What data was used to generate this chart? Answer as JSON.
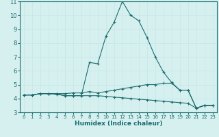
{
  "xlabel": "Humidex (Indice chaleur)",
  "xlim": [
    -0.5,
    23.5
  ],
  "ylim": [
    3,
    11
  ],
  "yticks": [
    3,
    4,
    5,
    6,
    7,
    8,
    9,
    10,
    11
  ],
  "xticks": [
    0,
    1,
    2,
    3,
    4,
    5,
    6,
    7,
    8,
    9,
    10,
    11,
    12,
    13,
    14,
    15,
    16,
    17,
    18,
    19,
    20,
    21,
    22,
    23
  ],
  "bg_color": "#d6f0f0",
  "grid_color": "#c8e8e8",
  "line_color": "#1a6b6b",
  "lines": [
    {
      "x": [
        0,
        1,
        2,
        3,
        4,
        5,
        6,
        7,
        8,
        9,
        10,
        11,
        12,
        13,
        14,
        15,
        16,
        17,
        18,
        19,
        20,
        21,
        22,
        23
      ],
      "y": [
        4.25,
        4.25,
        4.35,
        4.35,
        4.35,
        4.2,
        4.2,
        4.2,
        6.6,
        6.5,
        8.5,
        9.5,
        11.0,
        10.0,
        9.6,
        8.4,
        7.0,
        5.9,
        5.15,
        4.6,
        4.6,
        3.3,
        3.5,
        3.5
      ]
    },
    {
      "x": [
        0,
        1,
        2,
        3,
        4,
        5,
        6,
        7,
        8,
        9,
        10,
        11,
        12,
        13,
        14,
        15,
        16,
        17,
        18,
        19,
        20,
        21,
        22,
        23
      ],
      "y": [
        4.25,
        4.25,
        4.35,
        4.35,
        4.35,
        4.35,
        4.4,
        4.4,
        4.5,
        4.4,
        4.5,
        4.6,
        4.7,
        4.8,
        4.9,
        5.0,
        5.0,
        5.1,
        5.1,
        4.6,
        4.6,
        3.3,
        3.5,
        3.5
      ]
    },
    {
      "x": [
        0,
        1,
        2,
        3,
        4,
        5,
        6,
        7,
        8,
        9,
        10,
        11,
        12,
        13,
        14,
        15,
        16,
        17,
        18,
        19,
        20,
        21,
        22,
        23
      ],
      "y": [
        4.25,
        4.25,
        4.35,
        4.35,
        4.3,
        4.2,
        4.2,
        4.2,
        4.2,
        4.2,
        4.15,
        4.1,
        4.05,
        4.0,
        3.95,
        3.9,
        3.85,
        3.8,
        3.75,
        3.7,
        3.65,
        3.3,
        3.5,
        3.5
      ]
    }
  ]
}
